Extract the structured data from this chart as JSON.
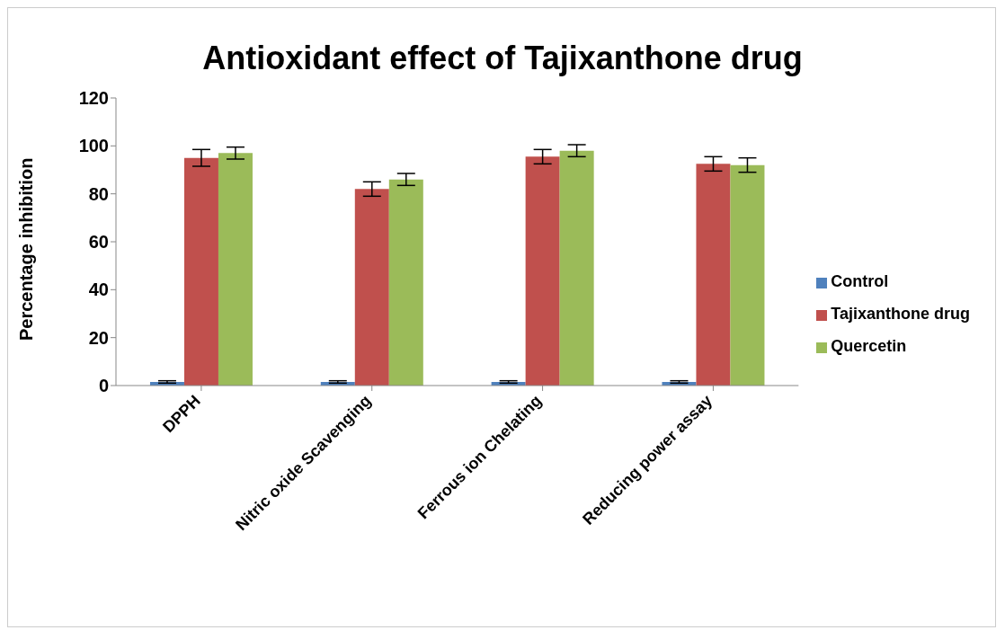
{
  "chart_data": {
    "type": "bar",
    "title": "Antioxidant effect of Tajixanthone drug",
    "ylabel": "Percentage inhibition",
    "categories": [
      "DPPH",
      "Nitric oxide Scavenging",
      "Ferrous ion Chelating",
      "Reducing power assay"
    ],
    "series": [
      {
        "name": "Control",
        "color": "#4f81bd",
        "values": [
          1.5,
          1.5,
          1.5,
          1.5
        ],
        "errors": [
          0.5,
          0.5,
          0.5,
          0.5
        ]
      },
      {
        "name": "Tajixanthone drug",
        "color": "#c0504d",
        "values": [
          95,
          82,
          95.5,
          92.5
        ],
        "errors": [
          3.5,
          3,
          3,
          3
        ]
      },
      {
        "name": "Quercetin",
        "color": "#9bbb59",
        "values": [
          97,
          86,
          98,
          92
        ],
        "errors": [
          2.5,
          2.5,
          2.5,
          3
        ]
      }
    ],
    "ylim": [
      0,
      120
    ],
    "yticks": [
      0,
      20,
      40,
      60,
      80,
      100,
      120
    ],
    "grid": false,
    "legend": "right"
  }
}
